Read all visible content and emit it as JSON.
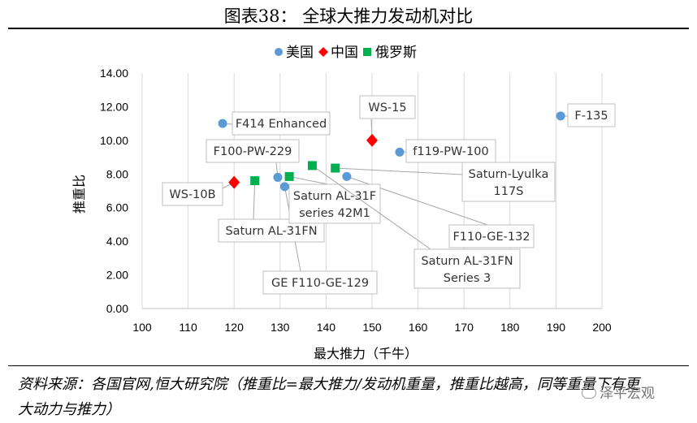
{
  "figure_title": "图表38：  全球大推力发动机对比",
  "source_note": "资料来源：各国官网,恒大研究院（推重比=最大推力/发动机重量，推重比越高，同等重量下有更大动力与推力）",
  "watermark": "泽平宏观",
  "chart_data": {
    "type": "scatter",
    "xlabel": "最大推力（千牛）",
    "ylabel": "推重比",
    "xlim": [
      100,
      200
    ],
    "ylim": [
      0,
      14
    ],
    "xticks": [
      "100",
      "110",
      "120",
      "130",
      "140",
      "150",
      "160",
      "170",
      "180",
      "190",
      "200"
    ],
    "yticks": [
      "0.00",
      "2.00",
      "4.00",
      "6.00",
      "8.00",
      "10.00",
      "12.00",
      "14.00"
    ],
    "grid": "vertical",
    "legend_position": "top",
    "series": [
      {
        "name": "美国",
        "marker": "circle",
        "color": "#5b9bd5",
        "points": [
          {
            "label": "F414 Enhanced",
            "x": 117.5,
            "y": 11.0
          },
          {
            "label": "F-135",
            "x": 191,
            "y": 11.45
          },
          {
            "label": "f119-PW-100",
            "x": 156,
            "y": 9.3
          },
          {
            "label": "F100-PW-229",
            "x": 129.5,
            "y": 7.8
          },
          {
            "label": "GE F110-GE-129",
            "x": 131,
            "y": 7.25
          },
          {
            "label": "F110-GE-132",
            "x": 144.5,
            "y": 7.85
          }
        ]
      },
      {
        "name": "中国",
        "marker": "diamond",
        "color": "#ff0000",
        "points": [
          {
            "label": "WS-15",
            "x": 150,
            "y": 10.0
          },
          {
            "label": "WS-10B",
            "x": 120,
            "y": 7.5
          }
        ]
      },
      {
        "name": "俄罗斯",
        "marker": "square",
        "color": "#00b050",
        "points": [
          {
            "label": "Saturn AL-31FN",
            "x": 124.5,
            "y": 7.6
          },
          {
            "label": "Saturn AL-31F series 42M1",
            "x": 132,
            "y": 7.85
          },
          {
            "label": "Saturn AL-31FN Series 3",
            "x": 137,
            "y": 8.5
          },
          {
            "label": "Saturn-Lyulka 117S",
            "x": 142,
            "y": 8.35
          }
        ]
      }
    ]
  }
}
